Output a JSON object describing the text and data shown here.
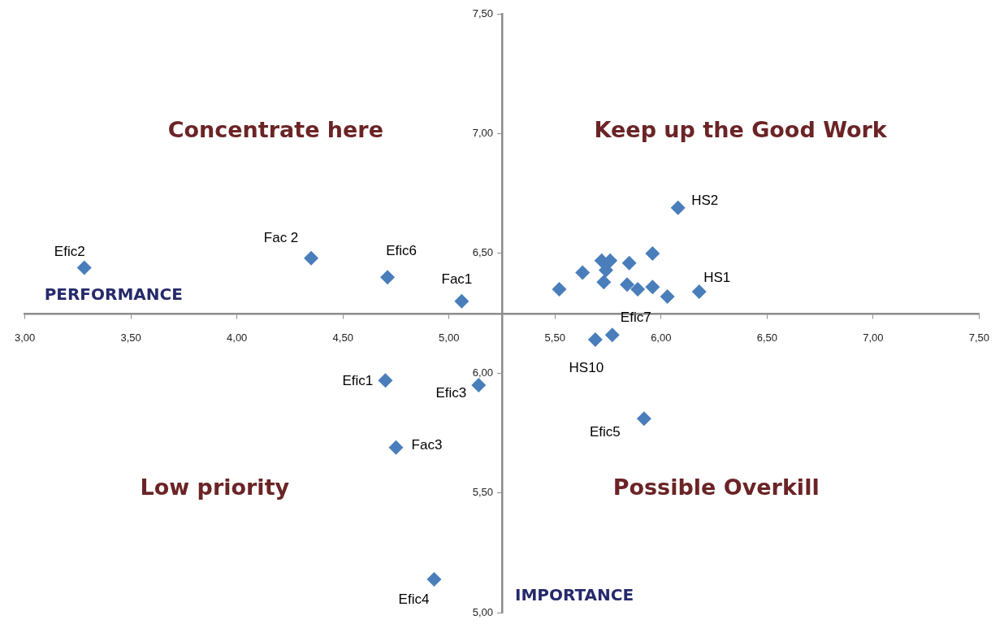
{
  "chart_data": {
    "type": "scatter",
    "xlabel": "PERFORMANCE",
    "ylabel": "IMPORTANCE",
    "x": [
      3.28,
      4.35,
      4.71,
      5.06,
      6.08,
      5.96,
      5.72,
      5.76,
      5.74,
      5.85,
      5.63,
      5.73,
      5.52,
      5.84,
      5.89,
      5.96,
      6.03,
      6.18,
      5.77,
      5.69,
      4.7,
      5.14,
      4.75,
      4.93,
      5.92
    ],
    "series": [
      {
        "color": "#4a7ebb",
        "values": [
          6.44,
          6.48,
          6.4,
          6.3,
          6.69,
          6.5,
          6.47,
          6.47,
          6.43,
          6.46,
          6.42,
          6.38,
          6.35,
          6.37,
          6.35,
          6.36,
          6.32,
          6.34,
          6.16,
          6.14,
          5.97,
          5.95,
          5.69,
          5.14,
          5.81
        ]
      }
    ],
    "xlim": [
      3,
      7.5
    ],
    "xticks": [
      {
        "value": 3,
        "label": "3,00"
      },
      {
        "value": 3.5,
        "label": "3,50"
      },
      {
        "value": 4,
        "label": "4,00"
      },
      {
        "value": 4.5,
        "label": "4,50"
      },
      {
        "value": 5,
        "label": "5,00"
      },
      {
        "value": 5.5,
        "label": "5,50"
      },
      {
        "value": 6,
        "label": "6,00"
      },
      {
        "value": 6.5,
        "label": "6,50"
      },
      {
        "value": 7,
        "label": "7,00"
      },
      {
        "value": 7.5,
        "label": "7,50"
      }
    ],
    "ylim": [
      5,
      7.5
    ],
    "yticks": [
      {
        "value": 5,
        "label": "5,00"
      },
      {
        "value": 5.5,
        "label": "5,50"
      },
      {
        "value": 6,
        "label": "6,00"
      },
      {
        "value": 6.5,
        "label": "6,50"
      },
      {
        "value": 7,
        "label": "7,00"
      },
      {
        "value": 7.5,
        "label": "7,50"
      }
    ],
    "grid": false,
    "legend": false,
    "marker": "diamond",
    "annotations": [
      "Concentrate here",
      "Keep up the Good Work",
      "Low priority",
      "Possible Overkill",
      {
        "text": "Efic2",
        "x": 3.28,
        "y": 6.44
      },
      {
        "text": "Fac 2",
        "x": 4.35,
        "y": 6.48
      },
      {
        "text": "Efic6",
        "x": 4.71,
        "y": 6.4
      },
      {
        "text": "Fac1",
        "x": 5.06,
        "y": 6.3
      },
      {
        "text": "HS2",
        "x": 6.08,
        "y": 6.69
      },
      {
        "text": "HS1",
        "x": 6.18,
        "y": 6.34
      },
      {
        "text": "Efic7",
        "x": 5.77,
        "y": 6.16
      },
      {
        "text": "HS10",
        "x": 5.69,
        "y": 6.14
      },
      {
        "text": "Efic1",
        "x": 4.7,
        "y": 5.97
      },
      {
        "text": "Efic3",
        "x": 5.14,
        "y": 5.95
      },
      {
        "text": "Fac3",
        "x": 4.75,
        "y": 5.69
      },
      {
        "text": "Efic5",
        "x": 5.92,
        "y": 5.81
      },
      {
        "text": "Efic4",
        "x": 4.93,
        "y": 5.14
      }
    ]
  }
}
